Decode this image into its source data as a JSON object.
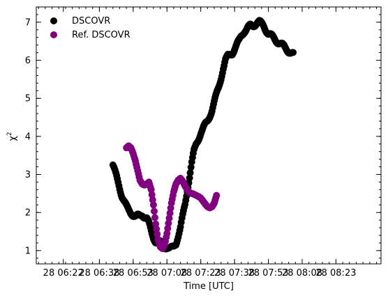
{
  "chart_data": {
    "type": "scatter",
    "title": "",
    "xlabel": "Time [UTC]",
    "ylabel": "χ",
    "ylabel_superscript": "2",
    "xlim_minutes": [
      10,
      163
    ],
    "ylim": [
      0.65,
      7.4
    ],
    "x_tick_minutes": [
      22,
      38,
      53,
      68,
      83,
      98,
      113,
      128,
      143
    ],
    "x_tick_labels": [
      "28 06:22",
      "28 06:38",
      "28 06:53",
      "28 07:08",
      "28 07:23",
      "28 07:38",
      "28 07:53",
      "28 08:08",
      "28 08:23"
    ],
    "y_ticks": [
      1,
      2,
      3,
      4,
      5,
      6,
      7
    ],
    "y_tick_labels": [
      "1",
      "2",
      "3",
      "4",
      "5",
      "6",
      "7"
    ],
    "x_minor_step_minutes": 3,
    "y_minor_step": 0.2,
    "legend_position": "top-left",
    "series": [
      {
        "name": "DSCOVR",
        "color": "#000000",
        "x_minutes": [
          44,
          45,
          46,
          47,
          48,
          49,
          50,
          51,
          52,
          53,
          54,
          55,
          56,
          57,
          58,
          59,
          60,
          61,
          62,
          63,
          64,
          65,
          66,
          67,
          68,
          69,
          70,
          71,
          72,
          73,
          74,
          75,
          76,
          77,
          78,
          79,
          80,
          81,
          82,
          83,
          84,
          85,
          86,
          87,
          88,
          89,
          90,
          91,
          92,
          93,
          94,
          95,
          96,
          97,
          98,
          99,
          100,
          101,
          102,
          103,
          104,
          105,
          106,
          107,
          108,
          109,
          110,
          111,
          112,
          113,
          114,
          115,
          116,
          117,
          118,
          119,
          120,
          121,
          122,
          123,
          124
        ],
        "values": [
          3.25,
          3.05,
          2.85,
          2.65,
          2.45,
          2.3,
          2.15,
          2.05,
          2.0,
          1.95,
          1.9,
          1.9,
          1.9,
          1.95,
          1.9,
          1.85,
          1.7,
          1.5,
          1.35,
          1.25,
          1.2,
          1.2,
          1.15,
          1.1,
          1.1,
          1.05,
          1.05,
          1.1,
          1.2,
          1.4,
          1.6,
          1.9,
          2.2,
          2.6,
          2.95,
          3.3,
          3.6,
          3.8,
          3.95,
          4.1,
          4.2,
          4.3,
          4.4,
          4.55,
          4.7,
          4.9,
          5.1,
          5.3,
          5.55,
          5.8,
          6.0,
          6.1,
          6.15,
          6.2,
          6.3,
          6.4,
          6.5,
          6.65,
          6.75,
          6.8,
          6.85,
          6.9,
          6.9,
          6.95,
          7.0,
          7.0,
          6.95,
          6.9,
          6.8,
          6.7,
          6.65,
          6.6,
          6.55,
          6.5,
          6.45,
          6.4,
          6.35,
          6.3,
          6.25,
          6.2,
          6.15
        ]
      },
      {
        "name": "Ref. DSCOVR",
        "color": "#800080",
        "x_minutes": [
          50,
          51,
          52,
          53,
          54,
          55,
          56,
          57,
          58,
          59,
          60,
          61,
          62,
          63,
          64,
          65,
          66,
          67,
          68,
          69,
          70,
          71,
          72,
          73,
          74,
          75,
          76,
          77,
          78,
          79,
          80,
          81,
          82,
          83,
          84,
          85,
          86,
          87,
          88,
          89,
          90
        ],
        "values": [
          3.7,
          3.75,
          3.7,
          3.55,
          3.35,
          3.1,
          2.85,
          2.75,
          2.72,
          2.75,
          2.8,
          2.6,
          2.2,
          1.7,
          1.3,
          1.1,
          1.05,
          1.15,
          1.45,
          1.85,
          2.25,
          2.55,
          2.75,
          2.85,
          2.9,
          2.82,
          2.7,
          2.6,
          2.52,
          2.5,
          2.48,
          2.45,
          2.42,
          2.38,
          2.3,
          2.22,
          2.15,
          2.12,
          2.15,
          2.25,
          2.45
        ]
      }
    ]
  }
}
